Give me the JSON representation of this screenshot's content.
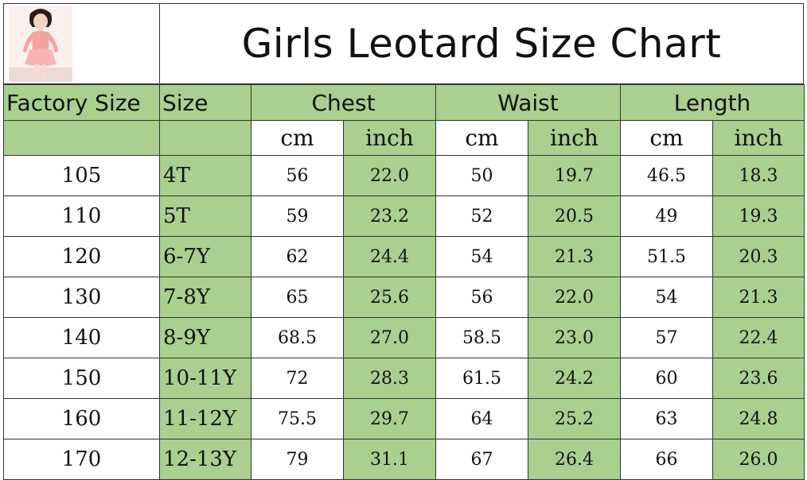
{
  "title": "Girls Leotard Size Chart",
  "header": {
    "factory_size": "Factory Size",
    "size": "Size",
    "chest": "Chest",
    "waist": "Waist",
    "length": "Length",
    "cm": "cm",
    "inch": "inch"
  },
  "rows": [
    {
      "factory": "105",
      "size": "4T",
      "chest_cm": "56",
      "chest_in": "22.0",
      "waist_cm": "50",
      "waist_in": "19.7",
      "length_cm": "46.5",
      "length_in": "18.3"
    },
    {
      "factory": "110",
      "size": "5T",
      "chest_cm": "59",
      "chest_in": "23.2",
      "waist_cm": "52",
      "waist_in": "20.5",
      "length_cm": "49",
      "length_in": "19.3"
    },
    {
      "factory": "120",
      "size": "6-7Y",
      "chest_cm": "62",
      "chest_in": "24.4",
      "waist_cm": "54",
      "waist_in": "21.3",
      "length_cm": "51.5",
      "length_in": "20.3"
    },
    {
      "factory": "130",
      "size": "7-8Y",
      "chest_cm": "65",
      "chest_in": "25.6",
      "waist_cm": "56",
      "waist_in": "22.0",
      "length_cm": "54",
      "length_in": "21.3"
    },
    {
      "factory": "140",
      "size": "8-9Y",
      "chest_cm": "68.5",
      "chest_in": "27.0",
      "waist_cm": "58.5",
      "waist_in": "23.0",
      "length_cm": "57",
      "length_in": "22.4"
    },
    {
      "factory": "150",
      "size": "10-11Y",
      "chest_cm": "72",
      "chest_in": "28.3",
      "waist_cm": "61.5",
      "waist_in": "24.2",
      "length_cm": "60",
      "length_in": "23.6"
    },
    {
      "factory": "160",
      "size": "11-12Y",
      "chest_cm": "75.5",
      "chest_in": "29.7",
      "waist_cm": "64",
      "waist_in": "25.2",
      "length_cm": "63",
      "length_in": "24.8"
    },
    {
      "factory": "170",
      "size": "12-13Y",
      "chest_cm": "79",
      "chest_in": "31.1",
      "waist_cm": "67",
      "waist_in": "26.4",
      "length_cm": "66",
      "length_in": "26.0"
    }
  ],
  "colors": {
    "header_green": "#a9d08e",
    "border": "#333333",
    "leotard_pink": "#f4a3a0"
  },
  "icons": [
    "girl-in-leotard-photo"
  ]
}
